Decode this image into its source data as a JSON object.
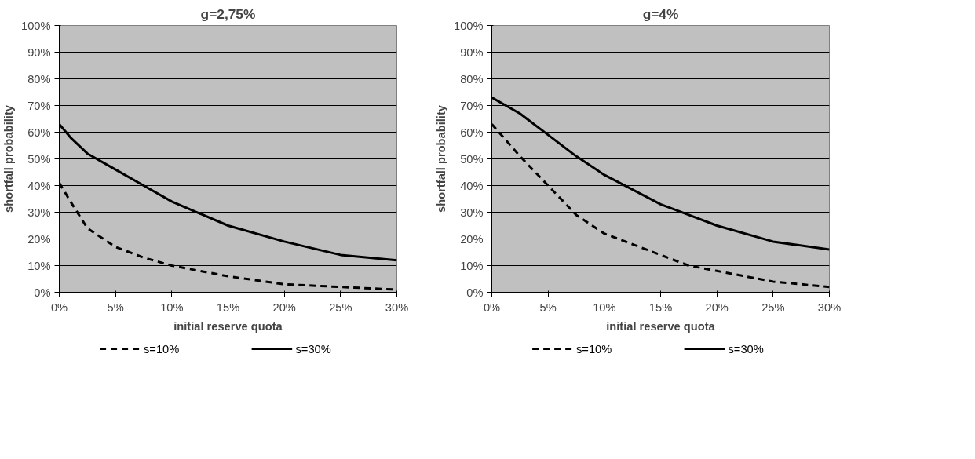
{
  "chart_data": [
    {
      "type": "line",
      "title": "g=2,75%",
      "xlabel": "initial reserve quota",
      "ylabel": "shortfall probability",
      "x": [
        0,
        1,
        2.5,
        5,
        7.5,
        10,
        15,
        20,
        25,
        30
      ],
      "series": [
        {
          "name": "s=10%",
          "color": "#000000",
          "line_style": "dashed",
          "values": [
            41,
            34,
            24,
            17,
            13,
            10,
            6,
            3,
            2,
            1
          ]
        },
        {
          "name": "s=30%",
          "color": "#000000",
          "line_style": "solid",
          "values": [
            63,
            58,
            52,
            46,
            40,
            34,
            25,
            19,
            14,
            12
          ]
        }
      ],
      "xlim": [
        0,
        30
      ],
      "ylim": [
        0,
        100
      ],
      "xticks": [
        {
          "value": 0,
          "label": "0%"
        },
        {
          "value": 5,
          "label": "5%"
        },
        {
          "value": 10,
          "label": "10%"
        },
        {
          "value": 15,
          "label": "15%"
        },
        {
          "value": 20,
          "label": "20%"
        },
        {
          "value": 25,
          "label": "25%"
        },
        {
          "value": 30,
          "label": "30%"
        }
      ],
      "yticks": [
        {
          "value": 0,
          "label": "0%"
        },
        {
          "value": 10,
          "label": "10%"
        },
        {
          "value": 20,
          "label": "20%"
        },
        {
          "value": 30,
          "label": "30%"
        },
        {
          "value": 40,
          "label": "40%"
        },
        {
          "value": 50,
          "label": "50%"
        },
        {
          "value": 60,
          "label": "60%"
        },
        {
          "value": 70,
          "label": "70%"
        },
        {
          "value": 80,
          "label": "80%"
        },
        {
          "value": 90,
          "label": "90%"
        },
        {
          "value": 100,
          "label": "100%"
        }
      ],
      "grid": "y",
      "legend": "bottom",
      "marker": "none"
    },
    {
      "type": "line",
      "title": "g=4%",
      "xlabel": "initial reserve quota",
      "ylabel": "shortfall probability",
      "x": [
        0,
        2.5,
        5,
        7.5,
        10,
        15,
        17.5,
        20,
        25,
        30
      ],
      "series": [
        {
          "name": "s=10%",
          "color": "#000000",
          "line_style": "dashed",
          "values": [
            63,
            51,
            40,
            29,
            22,
            14,
            10,
            8,
            4,
            2
          ]
        },
        {
          "name": "s=30%",
          "color": "#000000",
          "line_style": "solid",
          "values": [
            73,
            67,
            59,
            51,
            44,
            33,
            29,
            25,
            19,
            16
          ]
        }
      ],
      "xlim": [
        0,
        30
      ],
      "ylim": [
        0,
        100
      ],
      "xticks": [
        {
          "value": 0,
          "label": "0%"
        },
        {
          "value": 5,
          "label": "5%"
        },
        {
          "value": 10,
          "label": "10%"
        },
        {
          "value": 15,
          "label": "15%"
        },
        {
          "value": 20,
          "label": "20%"
        },
        {
          "value": 25,
          "label": "25%"
        },
        {
          "value": 30,
          "label": "30%"
        }
      ],
      "yticks": [
        {
          "value": 0,
          "label": "0%"
        },
        {
          "value": 10,
          "label": "10%"
        },
        {
          "value": 20,
          "label": "20%"
        },
        {
          "value": 30,
          "label": "30%"
        },
        {
          "value": 40,
          "label": "40%"
        },
        {
          "value": 50,
          "label": "50%"
        },
        {
          "value": 60,
          "label": "60%"
        },
        {
          "value": 70,
          "label": "70%"
        },
        {
          "value": 80,
          "label": "80%"
        },
        {
          "value": 90,
          "label": "90%"
        },
        {
          "value": 100,
          "label": "100%"
        }
      ],
      "grid": "y",
      "legend": "bottom",
      "marker": "none"
    }
  ]
}
